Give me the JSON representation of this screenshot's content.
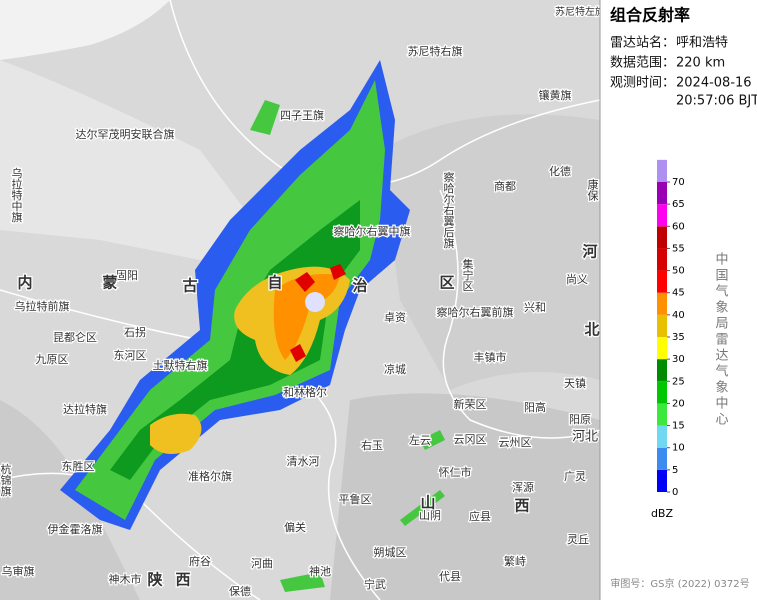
{
  "panel": {
    "title": "组合反射率",
    "station_label": "雷达站名：",
    "station": "呼和浩特",
    "range_label": "数据范围：",
    "range": "220 km",
    "time_label": "观测时间：",
    "date": "2024-08-16",
    "time": "20:57:06 BJT"
  },
  "legend": {
    "unit": "dBZ",
    "ticks": [
      0,
      5,
      10,
      15,
      20,
      25,
      30,
      35,
      40,
      45,
      50,
      55,
      60,
      65,
      70
    ],
    "colors": [
      "#0000f6",
      "#3c8cf0",
      "#70d8f0",
      "#3ce83c",
      "#00c800",
      "#008c00",
      "#ffff00",
      "#e8c000",
      "#ff9000",
      "#ff0000",
      "#d60000",
      "#c00000",
      "#ff00f0",
      "#9800b4",
      "#ad90f0"
    ]
  },
  "credit": "中国气象局雷达气象中心",
  "footer": "审图号：GS京 (2022) 0372号",
  "map": {
    "labels": [
      "苏尼特左旗",
      "苏尼特右旗",
      "镶黄旗",
      "四子王旗",
      "达尔罕茂明安联合旗",
      "乌拉特中旗",
      "察哈尔右翼后旗",
      "商都",
      "化德",
      "康保",
      "察哈尔右翼中旗",
      "集宁区",
      "固阳",
      "内",
      "蒙",
      "古",
      "自",
      "治",
      "区",
      "乌拉特前旗",
      "卓资",
      "察哈尔右翼前旗",
      "兴和",
      "尚义",
      "昆都仑区",
      "石拐",
      "九原区",
      "东河区",
      "土默特右旗",
      "丰镇市",
      "凉城",
      "天镇",
      "和林格尔",
      "达拉特旗",
      "新荣区",
      "阳高",
      "阳原",
      "右玉",
      "左云",
      "云冈区",
      "云州区",
      "清水河",
      "杭锦旗",
      "东胜区",
      "准格尔旗",
      "怀仁市",
      "广灵",
      "浑源",
      "平鲁区",
      "山阴",
      "应县",
      "伊金霍洛旗",
      "偏关",
      "朔城区",
      "繁峙",
      "灵丘",
      "府谷",
      "河曲",
      "神池",
      "宁武",
      "代县",
      "乌审旗",
      "神木市",
      "陕",
      "西",
      "山",
      "西",
      "河",
      "北",
      "河北",
      "保德"
    ]
  }
}
